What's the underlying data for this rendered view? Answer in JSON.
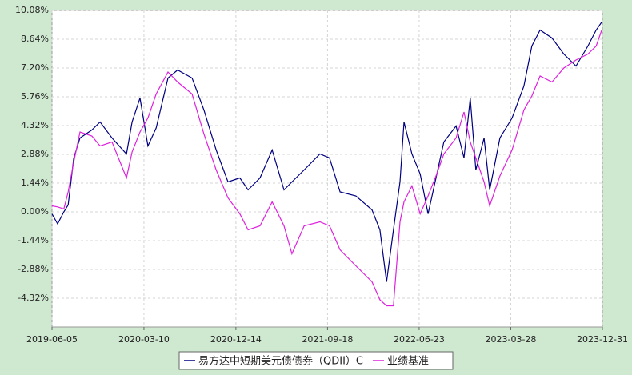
{
  "chart_data": {
    "type": "line",
    "x": [
      "2019-06-05",
      "2019-06-22",
      "2019-07-11",
      "2019-07-24",
      "2019-08-10",
      "2019-08-29",
      "2019-10-04",
      "2019-10-29",
      "2019-12-04",
      "2020-01-17",
      "2020-02-03",
      "2020-02-27",
      "2020-03-22",
      "2020-04-16",
      "2020-05-22",
      "2020-06-20",
      "2020-08-03",
      "2020-09-08",
      "2020-10-15",
      "2020-11-20",
      "2020-12-26",
      "2021-01-20",
      "2021-02-25",
      "2021-04-03",
      "2021-05-09",
      "2021-06-02",
      "2021-07-09",
      "2021-08-26",
      "2021-09-24",
      "2021-10-26",
      "2021-12-13",
      "2022-01-31",
      "2022-02-24",
      "2022-03-16",
      "2022-04-06",
      "2022-04-26",
      "2022-05-08",
      "2022-06-01",
      "2022-06-26",
      "2022-07-20",
      "2022-08-13",
      "2022-09-06",
      "2022-10-13",
      "2022-11-06",
      "2022-11-25",
      "2022-12-12",
      "2023-01-06",
      "2023-01-23",
      "2023-02-23",
      "2023-04-01",
      "2023-05-07",
      "2023-05-31",
      "2023-06-25",
      "2023-07-31",
      "2023-09-05",
      "2023-10-12",
      "2023-11-17",
      "2023-12-12",
      "2023-12-29"
    ],
    "series": [
      {
        "name": "易方达中短期美元债债券（QDII）C",
        "color": "#000080",
        "values": [
          -0.1,
          -0.6,
          0.0,
          0.35,
          2.7,
          3.7,
          4.1,
          4.5,
          3.7,
          2.9,
          4.5,
          5.7,
          3.3,
          4.2,
          6.7,
          7.1,
          6.7,
          5.1,
          3.1,
          1.5,
          1.7,
          1.1,
          1.7,
          3.1,
          1.1,
          1.5,
          2.1,
          2.9,
          2.7,
          1.0,
          0.8,
          0.1,
          -0.9,
          -3.5,
          -0.9,
          1.5,
          4.5,
          2.9,
          1.9,
          -0.1,
          1.7,
          3.5,
          4.3,
          2.7,
          5.7,
          2.1,
          3.7,
          1.1,
          3.7,
          4.7,
          6.3,
          8.3,
          9.1,
          8.7,
          7.9,
          7.3,
          8.3,
          9.1,
          9.5
        ]
      },
      {
        "name": "业绩基准",
        "color": "#dd22dd",
        "values": [
          0.3,
          0.25,
          0.15,
          1.0,
          2.5,
          4.0,
          3.8,
          3.3,
          3.5,
          1.7,
          3.0,
          4.0,
          4.7,
          5.9,
          7.0,
          6.5,
          5.9,
          3.9,
          2.1,
          0.7,
          -0.1,
          -0.9,
          -0.7,
          0.5,
          -0.7,
          -2.1,
          -0.7,
          -0.5,
          -0.7,
          -1.9,
          -2.7,
          -3.5,
          -4.4,
          -4.7,
          -4.7,
          -0.5,
          0.5,
          1.3,
          -0.1,
          0.8,
          1.8,
          2.9,
          3.7,
          5.0,
          3.5,
          2.7,
          1.5,
          0.3,
          1.8,
          3.1,
          5.1,
          5.8,
          6.8,
          6.5,
          7.2,
          7.6,
          7.9,
          8.3,
          9.1
        ]
      }
    ],
    "xlim": [
      "2019-06-05",
      "2023-12-31"
    ],
    "xticks": [
      "2019-06-05",
      "2020-03-10",
      "2020-12-14",
      "2021-09-18",
      "2022-06-23",
      "2023-03-28",
      "2023-12-31"
    ],
    "ylim": [
      -5.76,
      10.08
    ],
    "yticks": [
      {
        "value": 10.08,
        "label": "10.08%"
      },
      {
        "value": 8.64,
        "label": "8.64%"
      },
      {
        "value": 7.2,
        "label": "7.20%"
      },
      {
        "value": 5.76,
        "label": "5.76%"
      },
      {
        "value": 4.32,
        "label": "4.32%"
      },
      {
        "value": 2.88,
        "label": "2.88%"
      },
      {
        "value": 1.44,
        "label": "1.44%"
      },
      {
        "value": 0,
        "label": "0.00%"
      },
      {
        "value": -1.44,
        "label": "-1.44%"
      },
      {
        "value": -2.88,
        "label": "-2.88%"
      },
      {
        "value": -4.32,
        "label": "-4.32%"
      }
    ],
    "grid": true
  }
}
